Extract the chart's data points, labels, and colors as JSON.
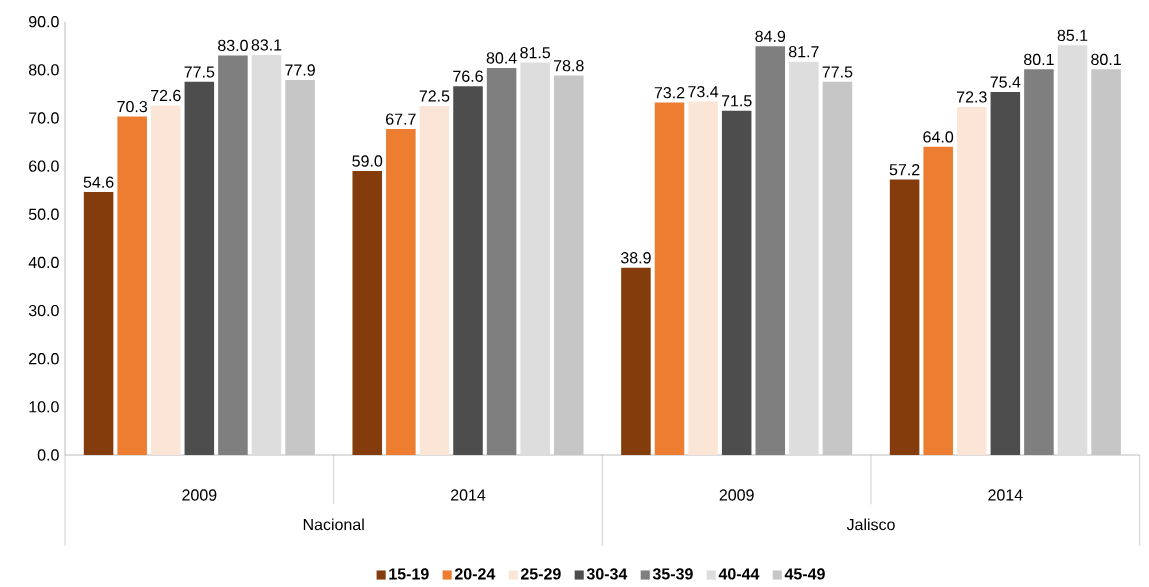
{
  "chart_data": {
    "type": "bar",
    "categories": [
      "2009",
      "2014",
      "2009",
      "2014"
    ],
    "annotations": [
      "Nacional",
      "Jalisco"
    ],
    "series": [
      {
        "name": "15-19",
        "color": "#843c0c",
        "values": [
          54.6,
          59.0,
          38.9,
          57.2
        ],
        "value_labels": [
          "54.6",
          "59.0",
          "38.9",
          "57.2"
        ]
      },
      {
        "name": "20-24",
        "color": "#ed7d31",
        "values": [
          70.3,
          67.7,
          73.2,
          64.0
        ],
        "value_labels": [
          "70.3",
          "67.7",
          "73.2",
          "64.0"
        ]
      },
      {
        "name": "25-29",
        "color": "#fbe5d6",
        "values": [
          72.6,
          72.5,
          73.4,
          72.3
        ],
        "value_labels": [
          "72.6",
          "72.5",
          "73.4",
          "72.3"
        ]
      },
      {
        "name": "30-34",
        "color": "#4d4d4d",
        "values": [
          77.5,
          76.6,
          71.5,
          75.4
        ],
        "value_labels": [
          "77.5",
          "76.6",
          "71.5",
          "75.4"
        ]
      },
      {
        "name": "35-39",
        "color": "#7f7f7f",
        "values": [
          83.0,
          80.4,
          84.9,
          80.1
        ],
        "value_labels": [
          "83.0",
          "80.4",
          "84.9",
          "80.1"
        ]
      },
      {
        "name": "40-44",
        "color": "#dddddd",
        "values": [
          83.1,
          81.5,
          81.7,
          85.1
        ],
        "value_labels": [
          "83.1",
          "81.5",
          "81.7",
          "85.1"
        ]
      },
      {
        "name": "45-49",
        "color": "#c6c6c6",
        "values": [
          77.9,
          78.8,
          77.5,
          80.1
        ],
        "value_labels": [
          "77.9",
          "78.8",
          "77.5",
          "80.1"
        ]
      }
    ],
    "ylim": [
      0,
      90
    ],
    "yticks": [
      {
        "value": 0,
        "label": "0.0"
      },
      {
        "value": 10,
        "label": "10.0"
      },
      {
        "value": 20,
        "label": "20.0"
      },
      {
        "value": 30,
        "label": "30.0"
      },
      {
        "value": 40,
        "label": "40.0"
      },
      {
        "value": 50,
        "label": "50.0"
      },
      {
        "value": 60,
        "label": "60.0"
      },
      {
        "value": 70,
        "label": "70.0"
      },
      {
        "value": 80,
        "label": "80.0"
      },
      {
        "value": 90,
        "label": "90.0"
      }
    ],
    "grid": false,
    "legend": "bottom"
  }
}
